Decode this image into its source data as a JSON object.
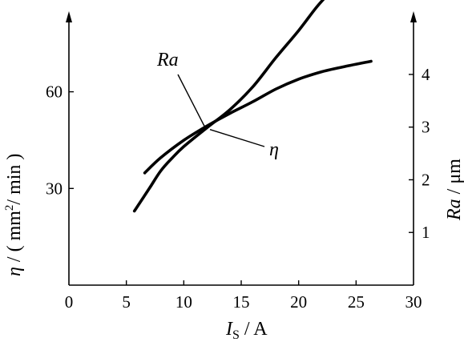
{
  "chart_data": {
    "type": "line",
    "x_axis": {
      "label_symbol": "I",
      "label_subscript": "S",
      "label_rest": " / A",
      "range": [
        0,
        30
      ],
      "ticks": [
        "0",
        "5",
        "10",
        "15",
        "20",
        "25",
        "30"
      ]
    },
    "left_axis": {
      "label_symbol": "η",
      "label_rest_before_sup": " / ( mm",
      "label_sup": "2",
      "label_rest_after_sup": "/ min )",
      "range": [
        0,
        85
      ],
      "ticks": [
        "30",
        "60"
      ]
    },
    "right_axis": {
      "label_symbol": "Ra",
      "label_rest": " / μm",
      "range": [
        0,
        5.2
      ],
      "ticks": [
        "1",
        "2",
        "3",
        "4"
      ]
    },
    "series": [
      {
        "name": "Ra",
        "axis": "right",
        "x": [
          6.6,
          8,
          10,
          12,
          14,
          16,
          18,
          20,
          22,
          24,
          26.3
        ],
        "y": [
          2.13,
          2.42,
          2.75,
          3.02,
          3.26,
          3.48,
          3.72,
          3.91,
          4.05,
          4.15,
          4.25
        ]
      },
      {
        "name": "η",
        "axis": "left",
        "x": [
          5.7,
          7,
          8,
          9,
          10,
          12,
          14,
          16,
          18,
          20,
          21.5,
          22.5
        ],
        "y": [
          23,
          30,
          35.5,
          39.5,
          43,
          48.8,
          54.4,
          61.5,
          70.5,
          79,
          86,
          90
        ]
      }
    ],
    "series_labels": [
      {
        "text": "Ra",
        "series": "Ra"
      },
      {
        "text": "η",
        "series": "η"
      }
    ]
  }
}
